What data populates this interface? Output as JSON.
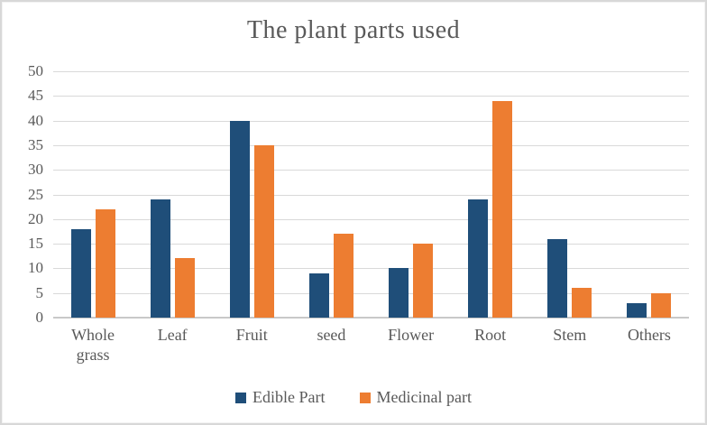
{
  "figure": {
    "kind": "excel-style clustered column chart"
  },
  "chart_data": {
    "type": "bar",
    "title": "The plant parts used",
    "categories": [
      "Whole grass",
      "Leaf",
      "Fruit",
      "seed",
      "Flower",
      "Root",
      "Stem",
      "Others"
    ],
    "series": [
      {
        "name": "Edible Part",
        "color": "#1F4E79",
        "values": [
          18,
          24,
          40,
          9,
          10,
          24,
          16,
          3
        ]
      },
      {
        "name": "Medicinal part",
        "color": "#ED7D31",
        "values": [
          22,
          12,
          35,
          17,
          15,
          44,
          6,
          5
        ]
      }
    ],
    "xlabel": "",
    "ylabel": "",
    "ylim": [
      0,
      50
    ],
    "yticks": [
      0,
      5,
      10,
      15,
      20,
      25,
      30,
      35,
      40,
      45,
      50
    ],
    "grid": true,
    "legend_position": "bottom"
  },
  "colors": {
    "text": "#595959",
    "gridline": "#D9D9D9",
    "baseline": "#C9C9C9",
    "background": "#FFFFFF",
    "border": "#D8D8D8"
  }
}
